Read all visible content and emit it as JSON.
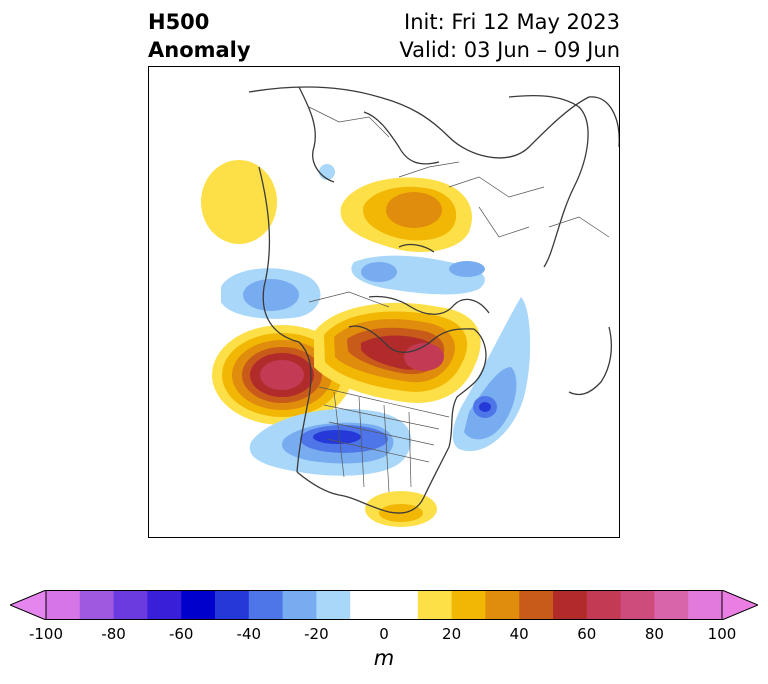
{
  "title": {
    "variable": "H500",
    "subtitle": "Anomaly",
    "init": "Init: Fri 12 May 2023",
    "valid": "Valid: 03 Jun – 09 Jun"
  },
  "colorbar": {
    "unit": "m",
    "tick_labels": [
      "-100",
      "-80",
      "-60",
      "-40",
      "-20",
      "0",
      "20",
      "40",
      "60",
      "80",
      "100"
    ],
    "range": [
      -100,
      100
    ],
    "interval": 10,
    "extend": "both",
    "colors": [
      "#d675e6",
      "#9f58e0",
      "#6c3be0",
      "#3a1fd9",
      "#0000cc",
      "#2539d8",
      "#4e76e8",
      "#78acf0",
      "#a9d7fa",
      "#ffffff",
      "#ffffff",
      "#fde047",
      "#f2b705",
      "#e08c0c",
      "#c85a1a",
      "#b22b2b",
      "#c23a54",
      "#cd4c7c",
      "#d865aa",
      "#e27adc"
    ],
    "extend_low_color": "#e585ee",
    "extend_high_color": "#ea7ee3"
  },
  "map": {
    "projection": "polar-stereographic",
    "hemisphere": "northern",
    "anomaly_centers": [
      {
        "label": "ridge-pacific-nw",
        "sign": "positive",
        "max_value": 70
      },
      {
        "label": "ridge-hudson-bay",
        "sign": "positive",
        "max_value": 70
      },
      {
        "label": "ridge-siberia",
        "sign": "positive",
        "max_value": 40
      },
      {
        "label": "ridge-alaska-gulf",
        "sign": "positive",
        "max_value": 20
      },
      {
        "label": "ridge-gulf-of-mexico",
        "sign": "positive",
        "max_value": 20
      },
      {
        "label": "trough-central-us",
        "sign": "negative",
        "max_value": -50
      },
      {
        "label": "trough-north-atlantic",
        "sign": "negative",
        "max_value": -50
      },
      {
        "label": "trough-north-pacific",
        "sign": "negative",
        "max_value": -30
      },
      {
        "label": "trough-arctic",
        "sign": "negative",
        "max_value": -20
      }
    ]
  }
}
